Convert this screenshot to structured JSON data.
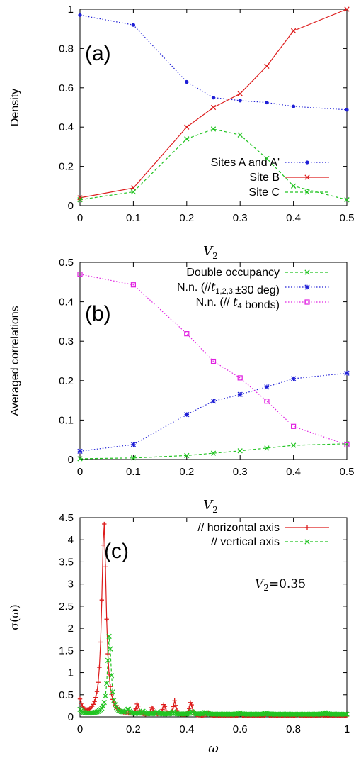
{
  "chart_data": [
    {
      "type": "line",
      "panel_label": "(a)",
      "xlabel": "V",
      "xlabel_sub": "2",
      "ylabel": "Density",
      "xlim": [
        0,
        0.5
      ],
      "ylim": [
        0,
        1
      ],
      "xticks": [
        "0",
        "0.1",
        "0.2",
        "0.3",
        "0.4",
        "0.5"
      ],
      "yticks": [
        "0",
        "0.2",
        "0.4",
        "0.6",
        "0.8",
        "1"
      ],
      "legend_position": "bottom-right",
      "series": [
        {
          "name": "Sites A and A'",
          "color": "#1f1fd6",
          "style": "dotted",
          "marker": "circle",
          "x": [
            0,
            0.1,
            0.2,
            0.25,
            0.3,
            0.35,
            0.4,
            0.5
          ],
          "y": [
            0.97,
            0.92,
            0.63,
            0.55,
            0.535,
            0.525,
            0.505,
            0.488
          ]
        },
        {
          "name": "Site B",
          "color": "#dd1b1b",
          "style": "solid",
          "marker": "x",
          "x": [
            0,
            0.1,
            0.2,
            0.25,
            0.3,
            0.35,
            0.4,
            0.5
          ],
          "y": [
            0.04,
            0.09,
            0.4,
            0.5,
            0.57,
            0.71,
            0.89,
            1.0
          ]
        },
        {
          "name": "Site C",
          "color": "#22c422",
          "style": "dashed",
          "marker": "x",
          "x": [
            0,
            0.1,
            0.2,
            0.25,
            0.3,
            0.35,
            0.4,
            0.5
          ],
          "y": [
            0.03,
            0.07,
            0.34,
            0.39,
            0.36,
            0.24,
            0.1,
            0.03
          ]
        }
      ]
    },
    {
      "type": "line",
      "panel_label": "(b)",
      "xlabel": "V",
      "xlabel_sub": "2",
      "ylabel": "Averaged correlations",
      "xlim": [
        0,
        0.5
      ],
      "ylim": [
        0,
        0.5
      ],
      "xticks": [
        "0",
        "0.1",
        "0.2",
        "0.3",
        "0.4",
        "0.5"
      ],
      "yticks": [
        "0",
        "0.1",
        "0.2",
        "0.3",
        "0.4",
        "0.5"
      ],
      "legend_position": "top-right",
      "series": [
        {
          "name": "Double occupancy",
          "color": "#22c422",
          "style": "dashed",
          "marker": "x",
          "x": [
            0,
            0.1,
            0.2,
            0.25,
            0.3,
            0.35,
            0.4,
            0.5
          ],
          "y": [
            0.002,
            0.004,
            0.01,
            0.016,
            0.022,
            0.029,
            0.036,
            0.04
          ]
        },
        {
          "name": "N.n. (//t1,2,3,±30 deg)",
          "color": "#1f1fd6",
          "style": "dotted",
          "marker": "star",
          "x": [
            0,
            0.1,
            0.2,
            0.25,
            0.3,
            0.35,
            0.4,
            0.5
          ],
          "y": [
            0.021,
            0.038,
            0.114,
            0.148,
            0.165,
            0.184,
            0.205,
            0.219
          ]
        },
        {
          "name": "N.n. (// t4 bonds)",
          "color": "#e020e0",
          "style": "dotted",
          "marker": "square",
          "x": [
            0,
            0.1,
            0.2,
            0.25,
            0.3,
            0.35,
            0.4,
            0.5
          ],
          "y": [
            0.47,
            0.443,
            0.319,
            0.249,
            0.207,
            0.148,
            0.084,
            0.037
          ]
        }
      ]
    },
    {
      "type": "line",
      "panel_label": "(c)",
      "xlabel": "ω",
      "ylabel": "σ(ω)",
      "xlim": [
        0,
        1
      ],
      "ylim": [
        0,
        4.5
      ],
      "xticks": [
        "0",
        "0.2",
        "0.4",
        "0.6",
        "0.8",
        "1"
      ],
      "yticks": [
        "0",
        "0.5",
        "1",
        "1.5",
        "2",
        "2.5",
        "3",
        "3.5",
        "4",
        "4.5"
      ],
      "legend_position": "top-right",
      "annotation": "V2=0.35",
      "series": [
        {
          "name": "// horizontal axis",
          "color": "#dd1b1b",
          "style": "solid",
          "marker": "plus",
          "peaks": [
            [
              0.09,
              4.37,
              0.01
            ],
            [
              0.215,
              0.25,
              0.006
            ],
            [
              0.27,
              0.18,
              0.006
            ],
            [
              0.315,
              0.25,
              0.006
            ],
            [
              0.355,
              0.33,
              0.006
            ],
            [
              0.415,
              0.31,
              0.006
            ],
            [
              0.48,
              0.08,
              0.005
            ],
            [
              0.6,
              0.05,
              0.005
            ],
            [
              0.7,
              0.05,
              0.005
            ],
            [
              0.815,
              0.04,
              0.005
            ],
            [
              0.905,
              0.03,
              0.005
            ]
          ],
          "edge": 0.33,
          "baseline": 0.02
        },
        {
          "name": "// vertical axis",
          "color": "#22c422",
          "style": "dashed",
          "marker": "x",
          "peaks": [
            [
              0.11,
              1.78,
              0.008
            ],
            [
              0.18,
              0.1,
              0.006
            ],
            [
              0.235,
              0.06,
              0.006
            ],
            [
              0.29,
              0.05,
              0.006
            ],
            [
              0.35,
              0.05,
              0.006
            ],
            [
              0.42,
              0.06,
              0.006
            ],
            [
              0.47,
              0.04,
              0.006
            ],
            [
              0.6,
              0.03,
              0.005
            ],
            [
              0.7,
              0.03,
              0.005
            ],
            [
              0.92,
              0.04,
              0.005
            ]
          ],
          "edge": 0.1,
          "baseline": 0.06
        }
      ]
    }
  ]
}
